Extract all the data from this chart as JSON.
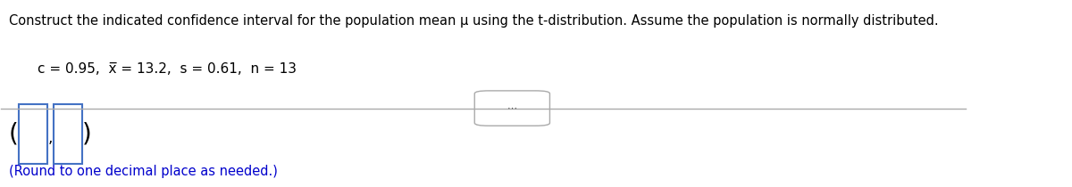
{
  "title_line": "Construct the indicated confidence interval for the population mean μ using the t-distribution. Assume the population is normally distributed.",
  "params_line": "c = 0.95,  x̅ = 13.2,  s = 0.61,  n = 13",
  "bottom_note": "(Round to one decimal place as needed.)",
  "bg_color": "#ffffff",
  "title_color": "#000000",
  "params_color": "#000000",
  "note_color": "#0000cc",
  "box_color": "#4472c4",
  "separator_color": "#aaaaaa",
  "ellipsis_box_color": "#aaaaaa",
  "ellipsis_text_color": "#555555"
}
